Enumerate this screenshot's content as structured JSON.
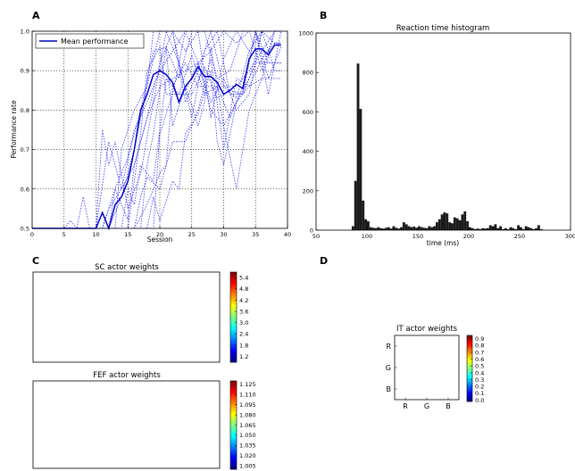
{
  "panel_letters": [
    "A",
    "B",
    "C",
    "D"
  ],
  "colors": {
    "mean": "#0000cc",
    "dotted": "#1a1aff",
    "hist": "#1a1a1a",
    "grid": "#000000"
  },
  "chart_data": [
    {
      "id": "A",
      "type": "line",
      "title": "",
      "xlabel": "Session",
      "ylabel": "Performance rate",
      "xlim": [
        0,
        40
      ],
      "ylim": [
        0.5,
        1.0
      ],
      "xticks": [
        0,
        5,
        10,
        15,
        20,
        25,
        30,
        35,
        40
      ],
      "yticks": [
        0.5,
        0.6,
        0.7,
        0.8,
        0.9,
        1.0
      ],
      "ytick_labels": [
        "0.5",
        "0.6",
        "0.7",
        "0.8",
        "0.9",
        "1.0"
      ],
      "grid": true,
      "legend": {
        "position": "top-left",
        "entries": [
          "Mean performance"
        ]
      },
      "mean_series": {
        "name": "Mean performance",
        "x": [
          0,
          1,
          2,
          3,
          4,
          5,
          6,
          7,
          8,
          9,
          10,
          11,
          12,
          13,
          14,
          15,
          16,
          17,
          18,
          19,
          20,
          21,
          22,
          23,
          24,
          25,
          26,
          27,
          28,
          29,
          30,
          31,
          32,
          33,
          34,
          35,
          36,
          37,
          38,
          39
        ],
        "y": [
          0.5,
          0.5,
          0.5,
          0.5,
          0.5,
          0.5,
          0.5,
          0.5,
          0.5,
          0.5,
          0.5,
          0.54,
          0.5,
          0.56,
          0.58,
          0.62,
          0.7,
          0.8,
          0.84,
          0.89,
          0.9,
          0.89,
          0.87,
          0.82,
          0.86,
          0.88,
          0.91,
          0.885,
          0.885,
          0.87,
          0.84,
          0.85,
          0.865,
          0.855,
          0.93,
          0.955,
          0.955,
          0.94,
          0.965,
          0.965
        ]
      },
      "individual_series": [
        {
          "x": [
            0,
            5,
            10,
            12,
            14,
            16,
            18,
            20,
            22,
            24,
            26,
            28,
            30,
            32,
            34,
            36,
            38,
            39
          ],
          "y": [
            0.5,
            0.5,
            0.5,
            0.72,
            0.6,
            0.75,
            0.82,
            0.9,
            0.95,
            1.0,
            0.92,
            0.95,
            1.0,
            0.97,
            1.0,
            1.0,
            1.0,
            1.0
          ]
        },
        {
          "x": [
            0,
            5,
            6,
            7,
            9,
            11,
            13,
            15,
            17,
            19,
            21,
            23,
            25,
            27,
            29,
            31,
            33,
            35,
            37,
            39
          ],
          "y": [
            0.5,
            0.5,
            0.52,
            0.5,
            0.5,
            0.5,
            0.6,
            0.68,
            0.8,
            0.95,
            0.96,
            0.88,
            1.0,
            1.0,
            0.88,
            0.9,
            1.0,
            1.0,
            0.92,
            0.92
          ]
        },
        {
          "x": [
            0,
            7,
            8,
            9,
            10,
            12,
            14,
            16,
            18,
            20,
            22,
            24,
            26,
            28,
            30,
            32,
            34,
            36,
            38,
            39
          ],
          "y": [
            0.5,
            0.5,
            0.58,
            0.5,
            0.5,
            0.5,
            0.58,
            0.7,
            0.86,
            1.0,
            1.0,
            0.82,
            0.9,
            1.0,
            0.86,
            0.83,
            0.95,
            1.0,
            0.97,
            0.97
          ]
        },
        {
          "x": [
            0,
            10,
            11,
            12,
            13,
            15,
            17,
            19,
            21,
            23,
            25,
            27,
            29,
            31,
            33,
            35,
            37,
            39
          ],
          "y": [
            0.5,
            0.5,
            0.75,
            0.66,
            0.72,
            0.55,
            0.64,
            0.82,
            1.0,
            0.92,
            0.78,
            0.95,
            1.0,
            0.84,
            0.84,
            1.0,
            0.84,
            1.0
          ]
        },
        {
          "x": [
            0,
            12,
            13,
            15,
            16,
            18,
            20,
            22,
            24,
            26,
            28,
            30,
            32,
            34,
            36,
            38,
            39
          ],
          "y": [
            0.5,
            0.5,
            0.6,
            0.52,
            0.66,
            0.78,
            0.92,
            1.0,
            0.95,
            1.0,
            0.78,
            0.93,
            1.0,
            1.0,
            0.9,
            1.0,
            1.0
          ]
        },
        {
          "x": [
            0,
            14,
            15,
            16,
            17,
            19,
            21,
            23,
            25,
            27,
            29,
            31,
            33,
            35,
            37,
            39
          ],
          "y": [
            0.5,
            0.5,
            0.6,
            0.56,
            0.66,
            0.62,
            0.88,
            0.84,
            0.94,
            0.84,
            0.86,
            0.78,
            0.86,
            1.0,
            0.88,
            0.96
          ]
        },
        {
          "x": [
            0,
            16,
            17,
            18,
            20,
            22,
            24,
            26,
            28,
            30,
            32,
            34,
            36,
            38,
            39
          ],
          "y": [
            0.5,
            0.5,
            0.58,
            0.63,
            0.6,
            0.72,
            0.72,
            0.8,
            0.93,
            0.7,
            0.88,
            0.86,
            0.93,
            0.97,
            0.97
          ]
        },
        {
          "x": [
            0,
            18,
            19,
            20,
            22,
            23,
            24,
            26,
            28,
            29,
            30,
            32,
            34,
            36,
            38,
            39
          ],
          "y": [
            0.5,
            0.5,
            0.58,
            0.52,
            0.62,
            0.6,
            0.74,
            0.79,
            0.9,
            0.72,
            0.66,
            0.82,
            0.88,
            1.0,
            1.0,
            1.0
          ]
        },
        {
          "x": [
            0,
            13,
            14,
            16,
            18,
            19,
            20,
            22,
            24,
            26,
            28,
            30,
            32,
            34,
            36,
            38,
            39
          ],
          "y": [
            0.5,
            0.5,
            0.7,
            0.8,
            0.86,
            1.0,
            1.0,
            1.0,
            0.85,
            0.92,
            0.82,
            0.88,
            0.8,
            0.84,
            1.0,
            0.9,
            0.9
          ]
        },
        {
          "x": [
            0,
            15,
            16,
            17,
            18,
            20,
            21,
            23,
            25,
            27,
            29,
            31,
            33,
            35,
            37,
            39
          ],
          "y": [
            0.5,
            0.5,
            0.62,
            0.74,
            0.9,
            0.96,
            0.84,
            0.84,
            0.84,
            0.91,
            0.83,
            0.85,
            0.84,
            0.92,
            0.92,
            0.92
          ]
        },
        {
          "x": [
            0,
            17,
            18,
            19,
            21,
            22,
            24,
            26,
            27,
            28,
            30,
            32,
            34,
            36,
            38,
            39
          ],
          "y": [
            0.5,
            0.5,
            0.66,
            0.74,
            0.96,
            0.76,
            0.86,
            0.76,
            0.82,
            0.96,
            0.76,
            0.6,
            0.8,
            0.88,
            1.0,
            1.0
          ]
        },
        {
          "x": [
            0,
            11,
            12,
            14,
            16,
            18,
            20,
            22,
            24,
            26,
            28,
            30,
            32,
            34,
            36,
            38,
            39
          ],
          "y": [
            0.5,
            0.5,
            0.55,
            0.6,
            0.66,
            0.78,
            0.86,
            0.88,
            0.9,
            0.92,
            0.8,
            0.76,
            0.82,
            0.86,
            0.88,
            0.88,
            0.88
          ]
        },
        {
          "x": [
            0,
            16,
            18,
            20,
            21,
            22,
            24,
            26,
            28,
            30,
            32,
            34,
            36,
            38,
            39
          ],
          "y": [
            0.5,
            0.5,
            0.56,
            0.64,
            0.66,
            0.86,
            0.92,
            0.86,
            0.86,
            0.86,
            0.86,
            0.9,
            0.95,
            1.0,
            1.0
          ]
        },
        {
          "x": [
            0,
            19,
            20,
            22,
            24,
            26,
            28,
            30,
            32,
            34,
            36,
            38,
            39
          ],
          "y": [
            0.5,
            0.5,
            0.74,
            0.84,
            1.0,
            1.0,
            1.0,
            1.0,
            1.0,
            0.95,
            1.0,
            1.0,
            1.0
          ]
        }
      ]
    },
    {
      "id": "B",
      "type": "bar",
      "title": "Reaction time histogram",
      "xlabel": "time (ms)",
      "ylabel": "",
      "xlim": [
        50,
        300
      ],
      "ylim": [
        0,
        1000
      ],
      "xticks": [
        50,
        100,
        150,
        200,
        250,
        300
      ],
      "yticks": [
        0,
        200,
        400,
        600,
        800,
        1000
      ],
      "bin_width": 2.5,
      "bin_start": 70,
      "counts": [
        0,
        0,
        0,
        0,
        0,
        0,
        20,
        250,
        845,
        615,
        150,
        55,
        45,
        15,
        12,
        10,
        15,
        10,
        8,
        12,
        15,
        8,
        20,
        12,
        8,
        15,
        40,
        30,
        20,
        15,
        18,
        12,
        20,
        15,
        12,
        10,
        20,
        15,
        20,
        40,
        55,
        80,
        90,
        85,
        40,
        35,
        65,
        60,
        50,
        80,
        95,
        45,
        15,
        10,
        5,
        8,
        5,
        10,
        8,
        10,
        25,
        20,
        30,
        10,
        20,
        5,
        10,
        5,
        15,
        10,
        5,
        25,
        15,
        5,
        20,
        15,
        10,
        5,
        10,
        25,
        5,
        0,
        0,
        0,
        0,
        0,
        0,
        0,
        0
      ]
    },
    {
      "id": "C1",
      "type": "heatmap",
      "title": "SC actor weights",
      "colorbar_ticks": [
        "1.2",
        "1.8",
        "2.4",
        "3.0",
        "3.6",
        "4.2",
        "4.8",
        "5.4"
      ],
      "colorbar_range": [
        0.9,
        5.7
      ]
    },
    {
      "id": "C2",
      "type": "heatmap",
      "title": "FEF actor weights",
      "colorbar_ticks": [
        "1.005",
        "1.020",
        "1.035",
        "1.050",
        "1.065",
        "1.080",
        "1.095",
        "1.110",
        "1.125"
      ],
      "colorbar_range": [
        1.0,
        1.13
      ]
    },
    {
      "id": "D",
      "type": "heatmap",
      "title": "IT actor weights",
      "x_categories": [
        "R",
        "G",
        "B"
      ],
      "y_categories": [
        "R",
        "G",
        "B"
      ],
      "colorbar_ticks": [
        "0.0",
        "0.1",
        "0.2",
        "0.3",
        "0.4",
        "0.5",
        "0.6",
        "0.7",
        "0.8",
        "0.9"
      ],
      "colorbar_range": [
        -0.02,
        0.95
      ]
    }
  ]
}
